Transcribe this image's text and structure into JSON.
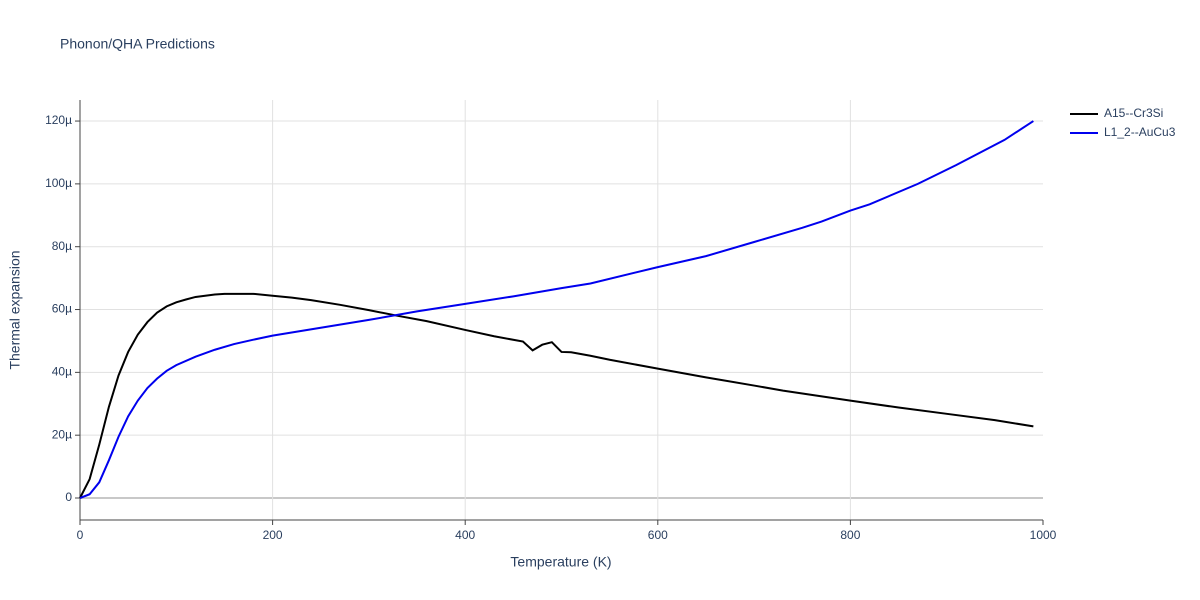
{
  "chart_data": {
    "type": "line",
    "title": "Phonon/QHA Predictions",
    "xlabel": "Temperature (K)",
    "ylabel": "Thermal expansion",
    "xlim": [
      0,
      1000
    ],
    "xticks": [
      0,
      200,
      400,
      600,
      800,
      1000
    ],
    "ylim": [
      -7,
      126.7
    ],
    "yticks": [
      0,
      {
        "value": 20,
        "label": "20µ"
      },
      {
        "value": 40,
        "label": "40µ"
      },
      {
        "value": 60,
        "label": "60µ"
      },
      {
        "value": 80,
        "label": "80µ"
      },
      {
        "value": 100,
        "label": "100µ"
      },
      {
        "value": 120,
        "label": "120µ"
      }
    ],
    "grid": true,
    "legend": "top-right",
    "series": [
      {
        "name": "A15--Cr3Si",
        "color": "#000000",
        "x": [
          0,
          10,
          20,
          30,
          40,
          50,
          60,
          70,
          80,
          90,
          100,
          110,
          120,
          130,
          140,
          150,
          160,
          170,
          180,
          200,
          220,
          240,
          270,
          300,
          330,
          360,
          400,
          430,
          460,
          470,
          480,
          490,
          500,
          510,
          530,
          550,
          600,
          650,
          700,
          730,
          800,
          850,
          900,
          950,
          990
        ],
        "values": [
          0,
          6,
          17,
          29,
          39,
          46.5,
          52,
          56,
          59,
          61,
          62.3,
          63.2,
          64,
          64.4,
          64.8,
          65,
          65,
          65,
          65,
          64.4,
          63.8,
          63,
          61.5,
          59.8,
          58,
          56.3,
          53.5,
          51.5,
          49.8,
          47,
          48.8,
          49.6,
          46.5,
          46.4,
          45.3,
          44,
          41.2,
          38.4,
          35.8,
          34.2,
          31,
          28.8,
          26.8,
          24.8,
          22.8
        ]
      },
      {
        "name": "L1_2--AuCu3",
        "color": "#0000ee",
        "x": [
          0,
          10,
          20,
          30,
          40,
          50,
          60,
          70,
          80,
          90,
          100,
          120,
          140,
          160,
          180,
          200,
          250,
          300,
          350,
          400,
          450,
          500,
          530,
          600,
          650,
          700,
          750,
          770,
          800,
          820,
          870,
          910,
          960,
          990
        ],
        "values": [
          0,
          1.2,
          5,
          12,
          19.5,
          26,
          31,
          35,
          38,
          40.5,
          42.3,
          45,
          47.2,
          49,
          50.4,
          51.7,
          54.2,
          56.7,
          59.4,
          61.8,
          64.2,
          66.8,
          68.3,
          73.5,
          77,
          81.5,
          86,
          88,
          91.5,
          93.5,
          100,
          106,
          114,
          120
        ]
      }
    ]
  }
}
